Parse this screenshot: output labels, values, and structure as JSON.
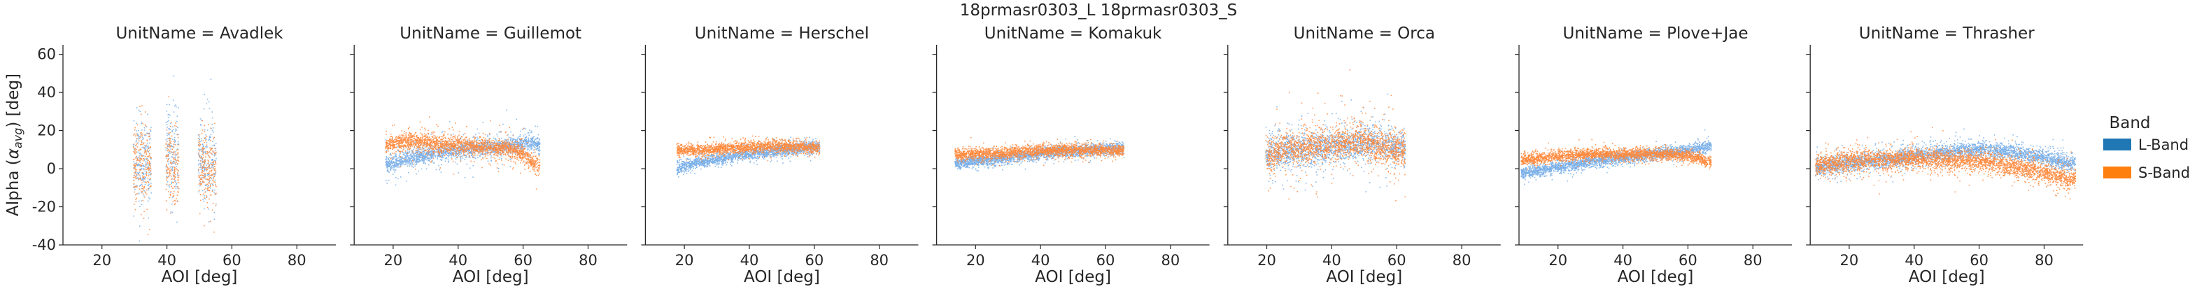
{
  "figure": {
    "suptitle": "18prmasr0303_L 18prmasr0303_S"
  },
  "colors": {
    "L-Band": "#1f77b4",
    "S-Band": "#ff7f0e",
    "L-Band-points": "#78aee8",
    "S-Band-points": "#ff8a3d"
  },
  "chart_data": {
    "type": "scatter",
    "title": "18prmasr0303_L 18prmasr0303_S",
    "xlabel": "AOI [deg]",
    "ylabel": "Alpha (α_avg) [deg]",
    "xlim": [
      8,
      92
    ],
    "ylim": [
      -40,
      65
    ],
    "xticks": [
      20,
      40,
      60,
      80
    ],
    "yticks": [
      -40,
      -20,
      0,
      20,
      40,
      60
    ],
    "grid": false,
    "legend": {
      "title": "Band",
      "placement": "right",
      "entries": [
        "L-Band",
        "S-Band"
      ]
    },
    "facets": [
      {
        "title": "UnitName = Avadlek",
        "series": [
          {
            "name": "L-Band",
            "mean": [
              [
                30,
                3
              ],
              [
                32,
                4
              ],
              [
                34,
                5
              ],
              [
                40,
                10
              ],
              [
                42,
                8
              ],
              [
                43,
                12
              ],
              [
                50,
                5
              ],
              [
                52,
                4
              ],
              [
                54,
                3
              ]
            ],
            "spread": 16,
            "dense": 10
          },
          {
            "name": "S-Band",
            "mean": [
              [
                30,
                2
              ],
              [
                32,
                3
              ],
              [
                34,
                4
              ],
              [
                40,
                4
              ],
              [
                42,
                2
              ],
              [
                50,
                2
              ],
              [
                52,
                1
              ],
              [
                54,
                0
              ]
            ],
            "spread": 14,
            "dense": 10
          }
        ],
        "segments": [
          [
            29.5,
            35
          ],
          [
            39.5,
            43.5
          ],
          [
            49.5,
            55
          ]
        ]
      },
      {
        "title": "UnitName = Guillemot",
        "series": [
          {
            "name": "L-Band",
            "mean": [
              [
                18,
                2
              ],
              [
                25,
                6
              ],
              [
                35,
                9
              ],
              [
                45,
                11
              ],
              [
                55,
                12
              ],
              [
                62,
                14
              ],
              [
                64,
                13
              ]
            ],
            "spread": 5,
            "dense": 2
          },
          {
            "name": "S-Band",
            "mean": [
              [
                18,
                13
              ],
              [
                25,
                15
              ],
              [
                35,
                13
              ],
              [
                45,
                12
              ],
              [
                55,
                11
              ],
              [
                60,
                8
              ],
              [
                64,
                2
              ]
            ],
            "spread": 5,
            "dense": 2
          }
        ],
        "segments": [
          [
            17.5,
            65
          ]
        ]
      },
      {
        "title": "UnitName = Herschel",
        "series": [
          {
            "name": "L-Band",
            "mean": [
              [
                18,
                1
              ],
              [
                25,
                4
              ],
              [
                35,
                7
              ],
              [
                45,
                9
              ],
              [
                55,
                11
              ],
              [
                61,
                12
              ]
            ],
            "spread": 2.5,
            "dense": 1.5
          },
          {
            "name": "S-Band",
            "mean": [
              [
                18,
                10
              ],
              [
                25,
                10
              ],
              [
                35,
                11
              ],
              [
                45,
                12
              ],
              [
                55,
                12
              ],
              [
                61,
                11
              ]
            ],
            "spread": 2.5,
            "dense": 1.5
          }
        ],
        "segments": [
          [
            17.5,
            61.5
          ]
        ]
      },
      {
        "title": "UnitName = Komakuk",
        "series": [
          {
            "name": "L-Band",
            "mean": [
              [
                14,
                3
              ],
              [
                25,
                5
              ],
              [
                35,
                7
              ],
              [
                45,
                9
              ],
              [
                55,
                10
              ],
              [
                65,
                11
              ]
            ],
            "spread": 2.5,
            "dense": 1.5
          },
          {
            "name": "S-Band",
            "mean": [
              [
                14,
                8
              ],
              [
                25,
                8
              ],
              [
                35,
                9
              ],
              [
                45,
                10
              ],
              [
                55,
                10
              ],
              [
                65,
                10
              ]
            ],
            "spread": 2.5,
            "dense": 1.5
          }
        ],
        "segments": [
          [
            13.5,
            65.5
          ]
        ]
      },
      {
        "title": "UnitName = Orca",
        "series": [
          {
            "name": "L-Band",
            "mean": [
              [
                20,
                8
              ],
              [
                30,
                10
              ],
              [
                40,
                12
              ],
              [
                50,
                14
              ],
              [
                55,
                13
              ],
              [
                62,
                11
              ]
            ],
            "spread": 9,
            "dense": 4
          },
          {
            "name": "S-Band",
            "mean": [
              [
                20,
                8
              ],
              [
                30,
                11
              ],
              [
                40,
                13
              ],
              [
                50,
                15
              ],
              [
                55,
                12
              ],
              [
                62,
                9
              ]
            ],
            "spread": 10,
            "dense": 4
          }
        ],
        "segments": [
          [
            19.5,
            62.5
          ]
        ]
      },
      {
        "title": "UnitName = Plove+Jae",
        "series": [
          {
            "name": "L-Band",
            "mean": [
              [
                9,
                -2
              ],
              [
                20,
                1
              ],
              [
                30,
                4
              ],
              [
                40,
                6
              ],
              [
                50,
                8
              ],
              [
                60,
                10
              ],
              [
                66,
                12
              ]
            ],
            "spread": 2.5,
            "dense": 1.5
          },
          {
            "name": "S-Band",
            "mean": [
              [
                9,
                5
              ],
              [
                20,
                7
              ],
              [
                30,
                8
              ],
              [
                40,
                8
              ],
              [
                50,
                8
              ],
              [
                60,
                7
              ],
              [
                66,
                4
              ]
            ],
            "spread": 2.5,
            "dense": 1.5
          }
        ],
        "segments": [
          [
            8.5,
            67
          ]
        ]
      },
      {
        "title": "UnitName = Thrasher",
        "series": [
          {
            "name": "L-Band",
            "mean": [
              [
                10,
                1
              ],
              [
                20,
                3
              ],
              [
                30,
                5
              ],
              [
                40,
                7
              ],
              [
                50,
                9
              ],
              [
                60,
                10
              ],
              [
                70,
                9
              ],
              [
                80,
                6
              ],
              [
                88,
                3
              ]
            ],
            "spread": 4,
            "dense": 2
          },
          {
            "name": "S-Band",
            "mean": [
              [
                10,
                2
              ],
              [
                20,
                4
              ],
              [
                30,
                5
              ],
              [
                40,
                6
              ],
              [
                50,
                5
              ],
              [
                60,
                4
              ],
              [
                70,
                2
              ],
              [
                80,
                -2
              ],
              [
                88,
                -5
              ]
            ],
            "spread": 5,
            "dense": 2.5
          }
        ],
        "segments": [
          [
            9.5,
            89.5
          ]
        ]
      }
    ]
  }
}
